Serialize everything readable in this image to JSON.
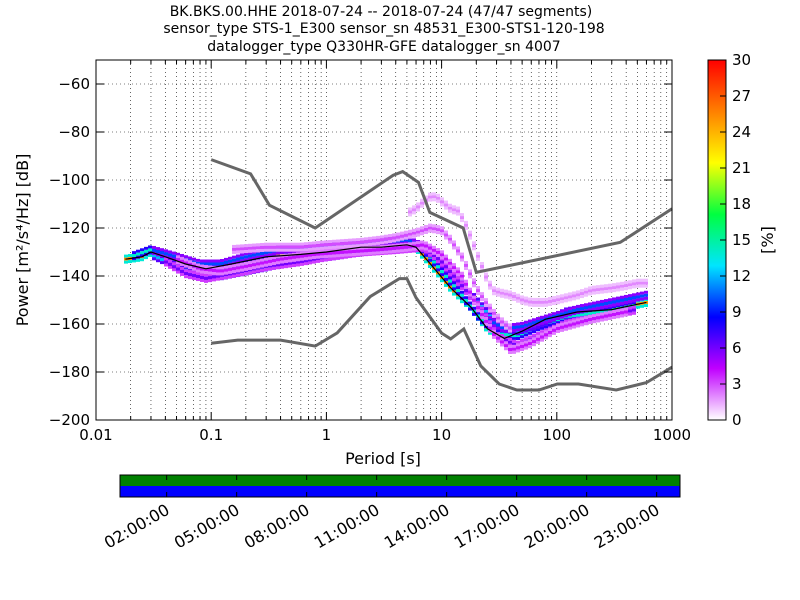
{
  "title": {
    "line1": "BK.BKS.00.HHE   2018-07-24 -- 2018-07-24  (47/47 segments)",
    "line2": "sensor_type STS-1_E300 sensor_sn 48531_E300-STS1-120-198",
    "line3": "datalogger_type Q330HR-GFE datalogger_sn 4007"
  },
  "chart_data": [
    {
      "type": "heatmap",
      "subtype": "probabilistic power spectral density",
      "xlabel": "Period [s]",
      "ylabel": "Power [m²/s⁴/Hz] [dB]",
      "xscale": "log",
      "xlim": [
        0.01,
        1000
      ],
      "ylim": [
        -200,
        -50
      ],
      "x_ticks": [
        0.01,
        0.1,
        1,
        10,
        100,
        1000
      ],
      "x_tick_labels": [
        "0.01",
        "0.1",
        "1",
        "10",
        "100",
        "1000"
      ],
      "y_ticks": [
        -200,
        -180,
        -160,
        -140,
        -120,
        -100,
        -80,
        -60
      ],
      "y_tick_labels": [
        "−200",
        "−180",
        "−160",
        "−140",
        "−120",
        "−100",
        "−80",
        "−60"
      ],
      "grid": true,
      "colorbar": {
        "label": "[%]",
        "min": 0,
        "max": 30,
        "ticks": [
          0,
          3,
          6,
          9,
          12,
          15,
          18,
          21,
          24,
          27,
          30
        ],
        "tick_labels": [
          "0",
          "3",
          "6",
          "9",
          "12",
          "15",
          "18",
          "21",
          "24",
          "27",
          "30"
        ],
        "colors": [
          "#ffffff",
          "#c000ff",
          "#0000ff",
          "#00e5ff",
          "#00ff40",
          "#ffff00",
          "#ff8000",
          "#ff0000"
        ]
      },
      "noise_models": {
        "high": {
          "x": [
            0.1,
            0.22,
            0.32,
            0.8,
            3.8,
            4.6,
            6.3,
            7.9,
            15.4,
            20,
            354.8,
            1000
          ],
          "y": [
            -91.5,
            -97.4,
            -110.5,
            -120,
            -98,
            -96.5,
            -101,
            -113.5,
            -120,
            -138.5,
            -126,
            -112
          ]
        },
        "low": {
          "x": [
            0.1,
            0.17,
            0.4,
            0.8,
            1.24,
            2.4,
            4.3,
            5,
            6,
            10,
            12,
            15.6,
            21.9,
            31.6,
            45,
            70,
            101,
            154,
            328,
            600,
            1000
          ],
          "y": [
            -168,
            -166.7,
            -166.7,
            -169.2,
            -163.7,
            -148.6,
            -141.1,
            -141.1,
            -149,
            -163.8,
            -166.2,
            -162.1,
            -177.5,
            -185,
            -187.5,
            -187.5,
            -185,
            -185,
            -187.5,
            -184.4,
            -178
          ]
        }
      },
      "series": [
        {
          "name": "mode",
          "x": [
            0.018,
            0.025,
            0.03,
            0.04,
            0.06,
            0.09,
            0.15,
            0.3,
            0.6,
            1,
            2,
            3,
            5,
            6,
            8,
            12,
            18,
            25,
            35,
            50,
            80,
            150,
            300,
            600
          ],
          "y": [
            -133,
            -132,
            -130,
            -132,
            -135,
            -137,
            -135,
            -132,
            -131,
            -130,
            -128,
            -128,
            -127,
            -128,
            -135,
            -145,
            -153,
            -162,
            -166,
            -163,
            -158,
            -155,
            -154,
            -151
          ]
        }
      ],
      "density": [
        {
          "x": [
            0.018,
            0.025,
            0.03,
            0.04,
            0.06,
            0.09,
            0.15,
            0.3,
            0.6,
            1,
            2,
            3,
            5,
            6,
            8,
            12,
            18,
            25,
            35,
            50,
            80,
            150,
            300,
            600
          ],
          "y": [
            -133,
            -132,
            -130,
            -132,
            -135,
            -137,
            -135,
            -132,
            -131,
            -130,
            -128,
            -128,
            -127,
            -128,
            -135,
            -145,
            -153,
            -162,
            -166,
            -163,
            -158,
            -155,
            -154,
            -151
          ],
          "p": 25
        },
        {
          "x": [
            0.02,
            0.03,
            0.045,
            0.07,
            0.1,
            0.2,
            0.4,
            0.8,
            1.5,
            3,
            5,
            7,
            10,
            15,
            20,
            30,
            45,
            70,
            120,
            250,
            500
          ],
          "y": [
            -132,
            -129,
            -133,
            -137,
            -138,
            -135,
            -133,
            -131,
            -129,
            -127,
            -126,
            -129,
            -138,
            -148,
            -156,
            -164,
            -165,
            -161,
            -157,
            -155,
            -152
          ],
          "p": 14
        },
        {
          "x": [
            0.03,
            0.05,
            0.08,
            0.12,
            0.25,
            0.5,
            1,
            2,
            4,
            6,
            9,
            14,
            20,
            30,
            45,
            70,
            120,
            250,
            500
          ],
          "y": [
            -131,
            -136,
            -140,
            -140,
            -137,
            -134,
            -132,
            -130,
            -128,
            -127,
            -132,
            -142,
            -150,
            -160,
            -163,
            -160,
            -155,
            -152,
            -149
          ],
          "p": 12
        },
        {
          "x": [
            0.03,
            0.05,
            0.08,
            0.12,
            0.2,
            0.4,
            0.8,
            1.5,
            3,
            5,
            8,
            12,
            18,
            25,
            35,
            50,
            80,
            150,
            300,
            600
          ],
          "y": [
            -129,
            -132,
            -135,
            -135,
            -132,
            -129,
            -128,
            -127,
            -126,
            -125,
            -129,
            -139,
            -148,
            -158,
            -162,
            -161,
            -158,
            -154,
            -151,
            -148
          ],
          "p": 10
        },
        {
          "x": [
            0.04,
            0.06,
            0.09,
            0.15,
            0.3,
            0.6,
            1,
            2,
            4,
            7,
            10,
            15,
            22,
            30,
            45,
            70,
            120,
            250,
            500
          ],
          "y": [
            -134,
            -139,
            -141,
            -139,
            -136,
            -134,
            -132,
            -130,
            -129,
            -128,
            -134,
            -144,
            -154,
            -165,
            -169,
            -165,
            -160,
            -157,
            -154
          ],
          "p": 6
        },
        {
          "x": [
            0.05,
            0.08,
            0.12,
            0.2,
            0.4,
            0.8,
            1.5,
            3,
            5,
            7,
            10,
            15,
            20,
            28,
            40,
            60,
            100,
            200,
            400
          ],
          "y": [
            -133,
            -137,
            -138,
            -136,
            -133,
            -131,
            -130,
            -129,
            -128,
            -127,
            -131,
            -140,
            -152,
            -164,
            -171,
            -168,
            -162,
            -158,
            -155
          ],
          "p": 4
        },
        {
          "x": [
            0.15,
            0.3,
            0.6,
            1,
            2,
            3,
            4,
            6,
            8,
            10,
            12,
            15,
            18,
            20,
            25,
            30,
            35,
            40
          ],
          "y": [
            -129,
            -128,
            -128,
            -127,
            -126,
            -125,
            -124,
            -122,
            -120,
            -121,
            -125,
            -132,
            -140,
            -145,
            -152,
            -157,
            -160,
            -162
          ],
          "p": 3
        },
        {
          "x": [
            5,
            6,
            7,
            8,
            9,
            10,
            12,
            14,
            16,
            18,
            20,
            22,
            25,
            28,
            32,
            40,
            50,
            60,
            80,
            100,
            150,
            200,
            300,
            400,
            500,
            600
          ],
          "y": [
            -114,
            -112,
            -109,
            -107,
            -107,
            -109,
            -112,
            -113,
            -118,
            -124,
            -130,
            -135,
            -142,
            -146,
            -147,
            -148,
            -150,
            -151,
            -151,
            -150,
            -148,
            -146,
            -145,
            -144,
            -143,
            -143
          ],
          "p": 2
        }
      ]
    },
    {
      "type": "timeline",
      "tick_labels": [
        "02:00:00",
        "05:00:00",
        "08:00:00",
        "11:00:00",
        "14:00:00",
        "17:00:00",
        "20:00:00",
        "23:00:00"
      ],
      "tick_hours": [
        2,
        5,
        8,
        11,
        14,
        17,
        20,
        23
      ],
      "range_hours": [
        0,
        24
      ],
      "rows": [
        {
          "color": "#008000",
          "start": 0,
          "end": 24
        },
        {
          "color": "#0000ff",
          "start": 0,
          "end": 24
        }
      ]
    }
  ]
}
